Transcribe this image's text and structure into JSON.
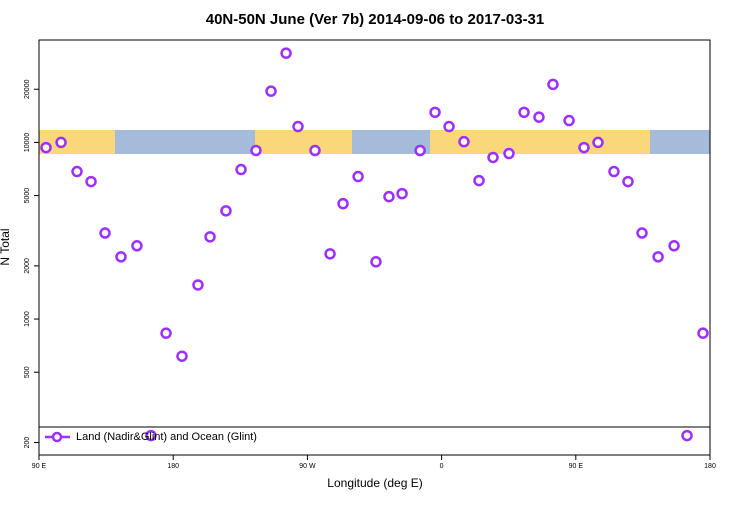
{
  "chart_data": {
    "type": "scatter",
    "title": "40N-50N June (Ver 7b)   2014-09-06 to 2017-03-31",
    "x_label": "Longitude (deg E)",
    "y_label": "N Total",
    "log_y": true,
    "legend": "bottom",
    "xlim": [
      90,
      540
    ],
    "xticks": [
      {
        "value": 90,
        "label": "90 E"
      },
      {
        "value": 180,
        "label": "180"
      },
      {
        "value": 270,
        "label": "90 W"
      },
      {
        "value": 360,
        "label": "0"
      },
      {
        "value": 450,
        "label": "90 E"
      },
      {
        "value": 540,
        "label": "180"
      }
    ],
    "ylim": [
      170,
      38000
    ],
    "yticks": [
      200,
      500,
      1000,
      2000,
      5000,
      10000,
      20000
    ],
    "series": [
      {
        "name": "Land (Nadir&Glint) and Ocean (Glint)",
        "color": "#9b30ff",
        "x": [
          94.7,
          104.8,
          115.5,
          124.9,
          134.3,
          145,
          155.7,
          165.1,
          175.2,
          185.9,
          196.6,
          204.7,
          215.4,
          225.5,
          235.5,
          245.6,
          255.7,
          263.7,
          275.1,
          285.2,
          293.9,
          304,
          316,
          324.7,
          333.5,
          345.6,
          355.6,
          365,
          375,
          385.1,
          394.5,
          405.2,
          415.3,
          425.3,
          434.7,
          445.5,
          455.5,
          464.9,
          475.6,
          485,
          494.4,
          505.2,
          515.9,
          524.6,
          535.3
        ],
        "values": [
          9350,
          10000,
          6840,
          6000,
          3070,
          2250,
          2600,
          219,
          832,
          616,
          1560,
          2920,
          4100,
          7020,
          9000,
          19500,
          32000,
          12300,
          9000,
          2340,
          4500,
          6410,
          2110,
          4930,
          5130,
          9000,
          14800,
          12300,
          10100,
          6080,
          8220,
          8650,
          14800,
          13900,
          21300,
          13300,
          9350,
          10000,
          6840,
          6000,
          3070,
          2250,
          2600,
          219,
          832
        ]
      }
    ]
  }
}
